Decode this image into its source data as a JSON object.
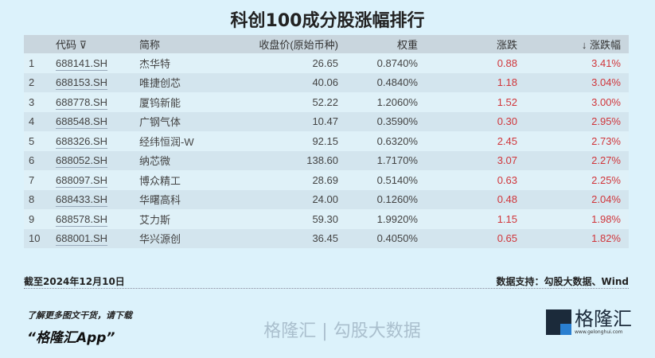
{
  "title": "科创100成分股涨幅排行",
  "headers": {
    "rank": "",
    "code": "代码",
    "filter_icon": "filter-icon",
    "name": "简称",
    "close": "收盘价(原始币种)",
    "weight": "权重",
    "change": "涨跌",
    "sort_icon": "↓",
    "pct": "涨跌幅"
  },
  "rows": [
    {
      "rank": "1",
      "code": "688141.SH",
      "name": "杰华特",
      "close": "26.65",
      "weight": "0.8740%",
      "change": "0.88",
      "pct": "3.41%"
    },
    {
      "rank": "2",
      "code": "688153.SH",
      "name": "唯捷创芯",
      "close": "40.06",
      "weight": "0.4840%",
      "change": "1.18",
      "pct": "3.04%"
    },
    {
      "rank": "3",
      "code": "688778.SH",
      "name": "厦钨新能",
      "close": "52.22",
      "weight": "1.2060%",
      "change": "1.52",
      "pct": "3.00%"
    },
    {
      "rank": "4",
      "code": "688548.SH",
      "name": "广钢气体",
      "close": "10.47",
      "weight": "0.3590%",
      "change": "0.30",
      "pct": "2.95%"
    },
    {
      "rank": "5",
      "code": "688326.SH",
      "name": "经纬恒润-W",
      "close": "92.15",
      "weight": "0.6320%",
      "change": "2.45",
      "pct": "2.73%"
    },
    {
      "rank": "6",
      "code": "688052.SH",
      "name": "纳芯微",
      "close": "138.60",
      "weight": "1.7170%",
      "change": "3.07",
      "pct": "2.27%"
    },
    {
      "rank": "7",
      "code": "688097.SH",
      "name": "博众精工",
      "close": "28.69",
      "weight": "0.5140%",
      "change": "0.63",
      "pct": "2.25%"
    },
    {
      "rank": "8",
      "code": "688433.SH",
      "name": "华曙高科",
      "close": "24.00",
      "weight": "0.1260%",
      "change": "0.48",
      "pct": "2.04%"
    },
    {
      "rank": "9",
      "code": "688578.SH",
      "name": "艾力斯",
      "close": "59.30",
      "weight": "1.9920%",
      "change": "1.15",
      "pct": "1.98%"
    },
    {
      "rank": "10",
      "code": "688001.SH",
      "name": "华兴源创",
      "close": "36.45",
      "weight": "0.4050%",
      "change": "0.65",
      "pct": "1.82%"
    }
  ],
  "footer": {
    "date": "截至2024年12月10日",
    "source": "数据支持：勾股大数据、Wind",
    "note": "了解更多图文干货，请下载",
    "app": "“格隆汇App”"
  },
  "logo": {
    "text": "格隆汇",
    "url": "www.gelonghui.com"
  },
  "watermark": "格隆汇 | 勾股大数据",
  "colors": {
    "up": "#d0353a",
    "background": "#dcf2fb",
    "header": "#c9d6de"
  }
}
